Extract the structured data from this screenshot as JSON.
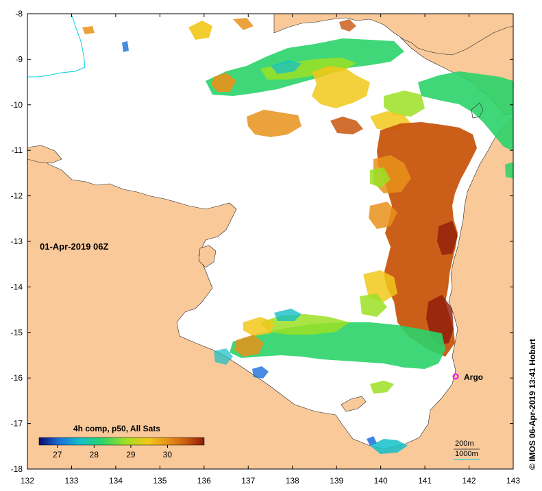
{
  "map": {
    "timestamp": "01-Apr-2019 06Z",
    "credit": "© IMOS 06-Apr-2019 13:41 Hobart",
    "x_ticks": [
      "132",
      "133",
      "134",
      "135",
      "136",
      "137",
      "138",
      "139",
      "140",
      "141",
      "142",
      "143"
    ],
    "y_ticks": [
      "-8",
      "-9",
      "-10",
      "-11",
      "-12",
      "-13",
      "-14",
      "-15",
      "-16",
      "-17",
      "-18"
    ],
    "lon_range": [
      132,
      143
    ],
    "lat_range": [
      -18,
      -8
    ]
  },
  "legend": {
    "title": "4h comp, p50, All Sats",
    "ticks": [
      "27",
      "28",
      "29",
      "30"
    ],
    "colors": [
      "#0a0a6e",
      "#1a6fd8",
      "#14c0c8",
      "#2bd36a",
      "#9be024",
      "#f2c81a",
      "#e8921a",
      "#c8560e",
      "#8c1a0a"
    ]
  },
  "contours": {
    "label_200": "200m",
    "label_1000": "1000m",
    "color_200": "#444444",
    "color_1000": "#00cfe0"
  },
  "markers": {
    "argo_label": "Argo",
    "argo_color": "#ff00ff"
  },
  "colors": {
    "land": "#f9c99a",
    "water": "#ffffff"
  }
}
